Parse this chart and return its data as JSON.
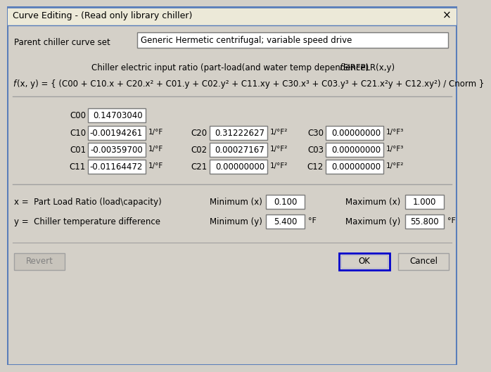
{
  "title": "Curve Editing - (Read only library chiller)",
  "parent_label": "Parent chiller curve set",
  "parent_value": "Generic Hermetic centrifugal; variable speed drive",
  "formula_f": "f",
  "formula_rest": "(x, y) = { (C00 + C10.x + C20.x² + C01.y + C02.y² + C11.xy + C30.x³ + C03.y³ + C21.x²y + C12.xy²) / Cnorm }",
  "desc_pre": "Chiller electric input ratio (part-load(and water temp dependence) ",
  "desc_italic": "f",
  "desc_post": "EIRFPLR(x,y)",
  "coeff_rows": [
    [
      [
        "C00",
        "0.14703040",
        ""
      ]
    ],
    [
      [
        "C10",
        "-0.00194261",
        "1/°F"
      ],
      [
        "C20",
        "0.31222627",
        "1/°F²"
      ],
      [
        "C30",
        "0.00000000",
        "1/°F³"
      ]
    ],
    [
      [
        "C01",
        "-0.00359700",
        "1/°F"
      ],
      [
        "C02",
        "0.00027167",
        "1/°F²"
      ],
      [
        "C03",
        "0.00000000",
        "1/°F³"
      ]
    ],
    [
      [
        "C11",
        "-0.01164472",
        "1/°F"
      ],
      [
        "C21",
        "0.00000000",
        "1/°F²"
      ],
      [
        "C12",
        "0.00000000",
        "1/°F²"
      ]
    ]
  ],
  "x_var_label": "x =  Part Load Ratio (load\\capacity)",
  "y_var_label": "y =  Chiller temperature difference",
  "x_min": "0.100",
  "x_max": "1.000",
  "y_min": "5.400",
  "y_max": "55.800",
  "bg_color": "#d4d0c8",
  "titlebar_color": "#ece9d8",
  "white": "#ffffff",
  "black": "#000000",
  "gray_text": "#808080",
  "sep_color": "#a0a0a0",
  "box_edge": "#7a7a7a",
  "ok_border": "#0000cc"
}
